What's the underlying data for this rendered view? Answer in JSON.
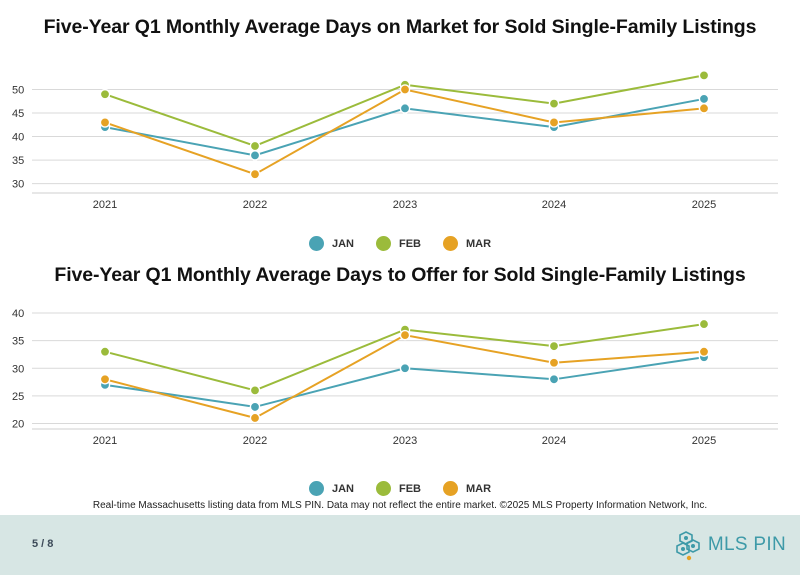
{
  "chart_data": [
    {
      "type": "line",
      "title": "Five-Year Q1 Monthly Average Days on Market for Sold Single-Family Listings",
      "categories": [
        "2021",
        "2022",
        "2023",
        "2024",
        "2025"
      ],
      "ylim": [
        28,
        55
      ],
      "yticks": [
        30,
        35,
        40,
        45,
        50
      ],
      "grid": true,
      "legend_position": "bottom-center",
      "series": [
        {
          "name": "JAN",
          "color": "#4aa3b4",
          "values": [
            42,
            36,
            46,
            42,
            48
          ]
        },
        {
          "name": "FEB",
          "color": "#9bbb3b",
          "values": [
            49,
            38,
            51,
            47,
            53
          ]
        },
        {
          "name": "MAR",
          "color": "#e6a224",
          "values": [
            43,
            32,
            50,
            43,
            46
          ]
        }
      ]
    },
    {
      "type": "line",
      "title": "Five-Year Q1 Monthly Average Days to Offer for Sold Single-Family Listings",
      "categories": [
        "2021",
        "2022",
        "2023",
        "2024",
        "2025"
      ],
      "ylim": [
        19,
        42
      ],
      "yticks": [
        20,
        25,
        30,
        35,
        40
      ],
      "grid": true,
      "legend_position": "bottom-center",
      "series": [
        {
          "name": "JAN",
          "color": "#4aa3b4",
          "values": [
            27,
            23,
            30,
            28,
            32
          ]
        },
        {
          "name": "FEB",
          "color": "#9bbb3b",
          "values": [
            33,
            26,
            37,
            34,
            38
          ]
        },
        {
          "name": "MAR",
          "color": "#e6a224",
          "values": [
            28,
            21,
            36,
            31,
            33
          ]
        }
      ]
    }
  ],
  "footnote": "Real-time Massachusetts listing data from MLS PIN. Data may not reflect the entire market. ©2025 MLS Property Information Network, Inc.",
  "footer": {
    "page": "5 / 8",
    "logo_text": "MLS PIN"
  }
}
